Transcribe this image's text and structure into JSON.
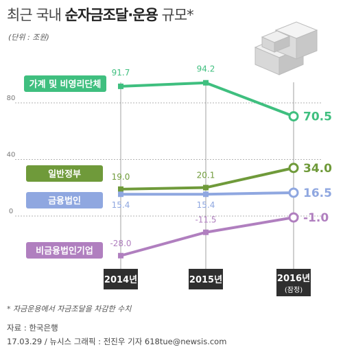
{
  "header": {
    "title_light": "최근 국내 ",
    "title_bold": "순자금조달·운용",
    "title_end": " 규모*",
    "unit": "(단위 : 조원)"
  },
  "footer": {
    "footnote": "* 자금운용에서 자금조달을 차감한 수치",
    "source": "자료 : 한국은행",
    "credit": "17.03.29 / 뉴시스 그래픽 : 전진우 기자 618tue@newsis.com"
  },
  "chart_data": {
    "type": "line",
    "categories": [
      "2014년",
      "2015년",
      "2016년"
    ],
    "category_notes": [
      "",
      "",
      "(잠정)"
    ],
    "yticks": [
      80,
      40,
      0
    ],
    "ylim": [
      -40,
      110
    ],
    "series": [
      {
        "name": "가계 및 비영리단체",
        "values": [
          91.7,
          94.2,
          70.5
        ],
        "labels": [
          "91.7",
          "94.2",
          "70.5"
        ],
        "color": "#3fbf7f"
      },
      {
        "name": "일반정부",
        "values": [
          19.0,
          20.1,
          34.0
        ],
        "labels": [
          "19.0",
          "20.1",
          "34.0"
        ],
        "color": "#6f9a3a"
      },
      {
        "name": "금융법인",
        "values": [
          15.4,
          15.4,
          16.5
        ],
        "labels": [
          "15.4",
          "15.4",
          "16.5"
        ],
        "color": "#8fa7e0"
      },
      {
        "name": "비금융법인기업",
        "values": [
          -28.0,
          -11.5,
          -1.0
        ],
        "labels": [
          "-28.0",
          "-11.5",
          "-1.0"
        ],
        "color": "#b07fbf"
      }
    ]
  }
}
